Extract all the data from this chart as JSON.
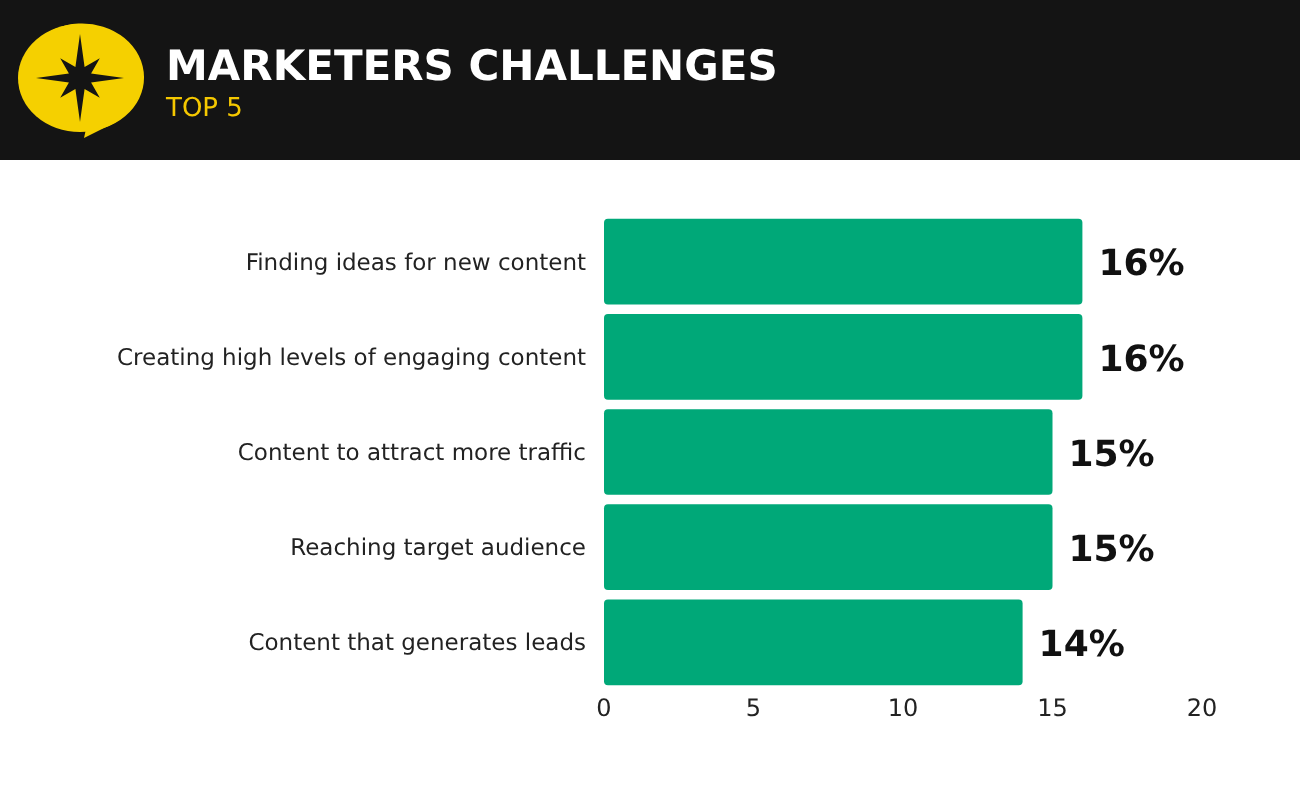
{
  "chart_data": {
    "type": "bar",
    "orientation": "horizontal",
    "title": "MARKETERS CHALLENGES",
    "subtitle": "TOP 5",
    "categories": [
      "Finding ideas for new content",
      "Creating high levels of engaging content",
      "Content to attract more traffic",
      "Reaching target audience",
      "Content that generates leads"
    ],
    "values": [
      16,
      16,
      15,
      15,
      14
    ],
    "value_labels": [
      "16%",
      "16%",
      "15%",
      "15%",
      "14%"
    ],
    "color": "#00a878",
    "xlim": [
      0,
      20
    ],
    "xticks": [
      0,
      5,
      10,
      15,
      20
    ]
  }
}
